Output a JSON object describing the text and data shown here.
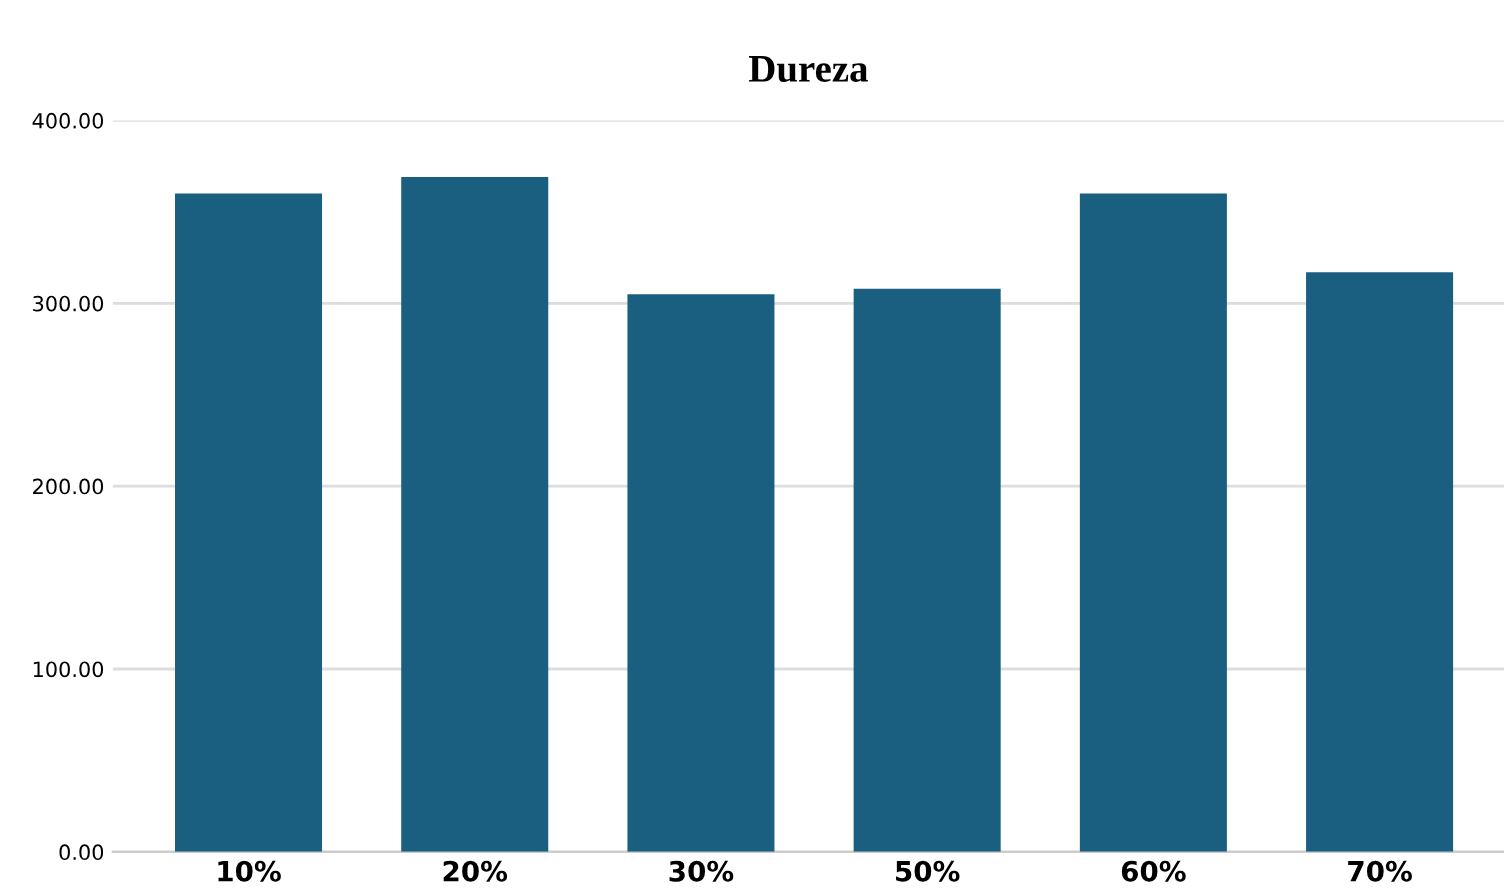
{
  "chart_data": {
    "type": "bar",
    "title": "Dureza",
    "categories": [
      "10%",
      "20%",
      "30%",
      "50%",
      "60%",
      "70%"
    ],
    "values": [
      360,
      369,
      305,
      308,
      360,
      317
    ],
    "color": "#1a5e80",
    "ylim": [
      0,
      400
    ],
    "yticks": [
      {
        "value": 0,
        "label": "0.00"
      },
      {
        "value": 100,
        "label": "100.00"
      },
      {
        "value": 200,
        "label": "200.00"
      },
      {
        "value": 300,
        "label": "300.00"
      },
      {
        "value": 400,
        "label": "400.00"
      }
    ],
    "grid": "y"
  }
}
